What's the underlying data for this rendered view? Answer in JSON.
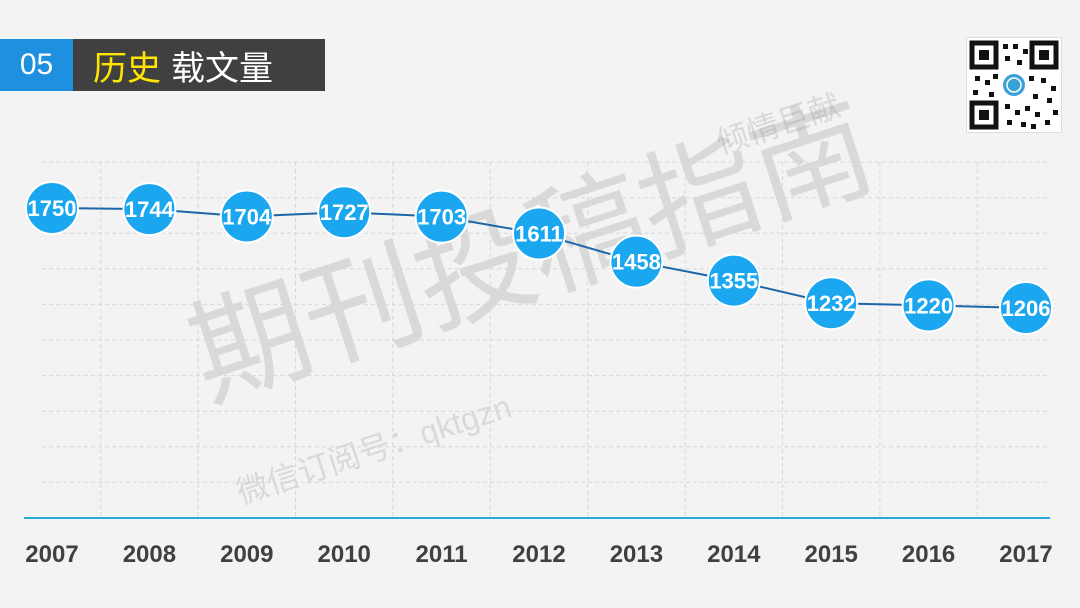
{
  "header": {
    "number": "05",
    "title_highlight": "历史",
    "title_rest": "载文量"
  },
  "watermarks": {
    "main": "期刊投稿指南",
    "sub": "微信订阅号：qktgzn",
    "top": "倾情巨献"
  },
  "colors": {
    "accent": "#1f8fe0",
    "point": "#1aa7f0",
    "line": "#1c66a8",
    "axis": "#29a9d9",
    "grid": "#d8d8d8"
  },
  "chart_data": {
    "type": "line",
    "categories": [
      "2007",
      "2008",
      "2009",
      "2010",
      "2011",
      "2012",
      "2013",
      "2014",
      "2015",
      "2016",
      "2017"
    ],
    "values": [
      1750,
      1744,
      1704,
      1727,
      1703,
      1611,
      1458,
      1355,
      1232,
      1220,
      1206
    ],
    "data_labels": [
      "1750",
      "1744",
      "1704",
      "1727",
      "1703",
      "1611",
      "1458",
      "1355",
      "1232",
      "1220",
      "1206"
    ],
    "title": "",
    "xlabel": "",
    "ylabel": "",
    "grid": true,
    "legend": "none"
  }
}
